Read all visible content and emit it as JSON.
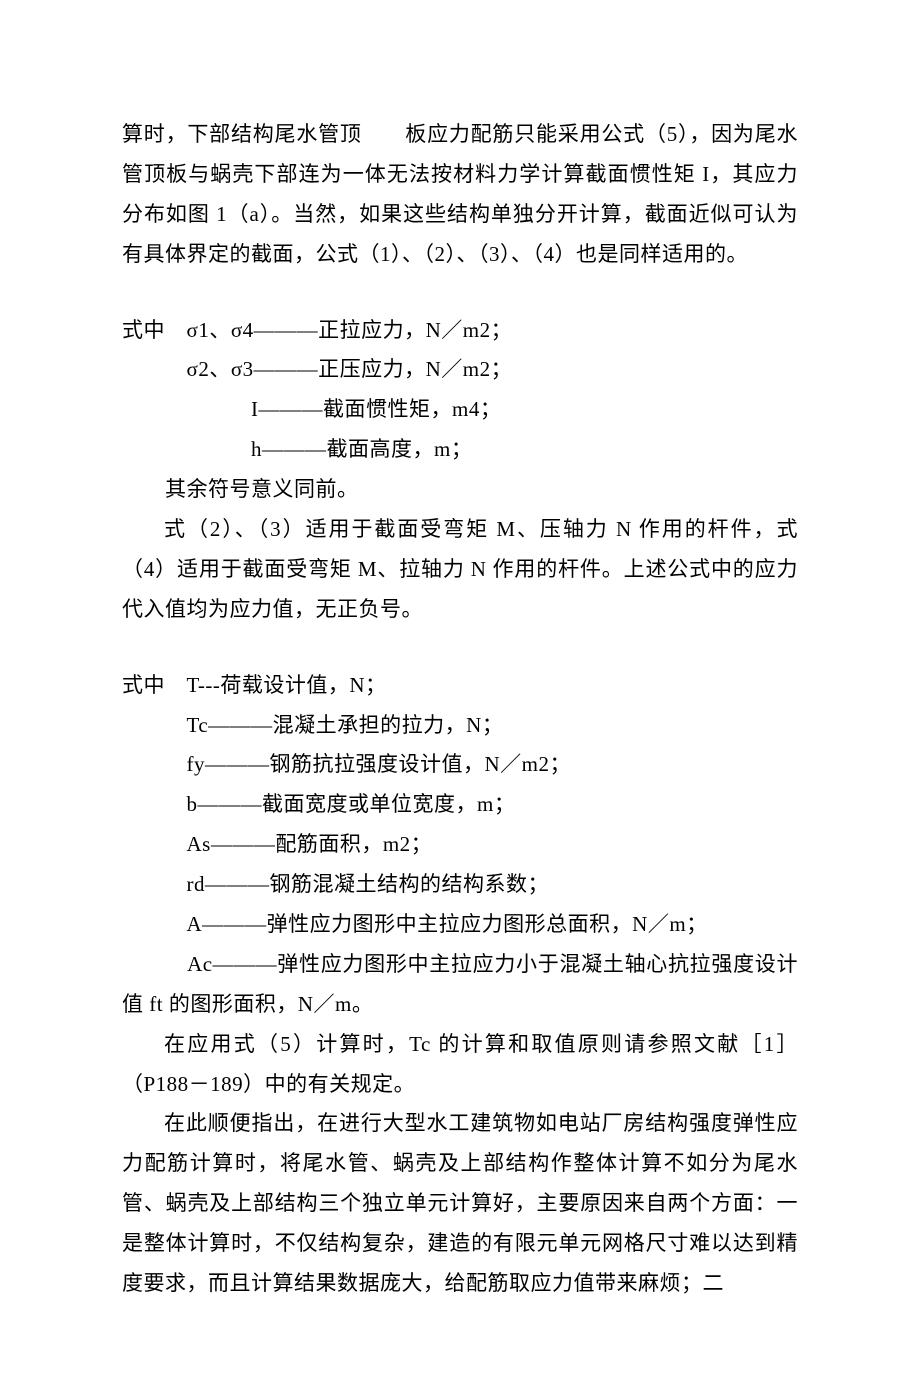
{
  "p1": "算时，下部结构尾水管顶　　板应力配筋只能采用公式（5），因为尾水管顶板与蜗壳下部连为一体无法按材料力学计算截面惯性矩 I，其应力分布如图 1（a）。当然，如果这些结构单独分开计算，截面近似可认为有具体界定的截面，公式（1）、（2）、（3）、（4）也是同样适用的。",
  "d1": "式中　σ1、σ4———正拉应力，N／m2；",
  "d2": "　　　σ2、σ3———正压应力，N／m2；",
  "d3": "　　　　　　I———截面惯性矩，m4；",
  "d4": "　　　　　　h———截面高度，m；",
  "d5": "　　其余符号意义同前。",
  "p2": "式（2）、（3）适用于截面受弯矩 M、压轴力 N 作用的杆件，式（4）适用于截面受弯矩 M、拉轴力 N 作用的杆件。上述公式中的应力代入值均为应力值，无正负号。",
  "e1": "式中　T---荷载设计值，N；",
  "e2": "　　　Tc———混凝土承担的拉力，N；",
  "e3": "　　　fy———钢筋抗拉强度设计值，N／m2；",
  "e4": "　　　b———截面宽度或单位宽度，m；",
  "e5": "　　　As———配筋面积，m2；",
  "e6": "　　　rd———钢筋混凝土结构的结构系数；",
  "e7": "　　　A———弹性应力图形中主拉应力图形总面积，N／m；",
  "e8": "　　　Ac———弹性应力图形中主拉应力小于混凝土轴心抗拉强度设计值 ft 的图形面积，N／m。",
  "p3": "在应用式（5）计算时，Tc 的计算和取值原则请参照文献［1］（P188－189）中的有关规定。",
  "p4": "在此顺便指出，在进行大型水工建筑物如电站厂房结构强度弹性应力配筋计算时，将尾水管、蜗壳及上部结构作整体计算不如分为尾水管、蜗壳及上部结构三个独立单元计算好，主要原因来自两个方面：一是整体计算时，不仅结构复杂，建造的有限元单元网格尺寸难以达到精度要求，而且计算结果数据庞大，给配筋取应力值带来麻烦；二"
}
